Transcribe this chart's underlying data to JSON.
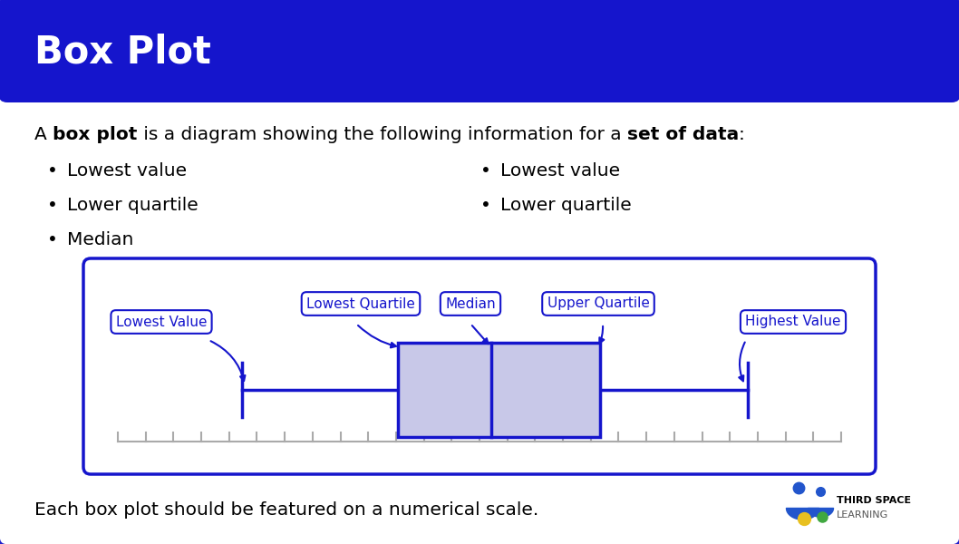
{
  "title": "Box Plot",
  "title_bg_color": "#1515CC",
  "title_text_color": "#FFFFFF",
  "bg_color": "#FFFFFF",
  "border_color": "#2020CC",
  "intro_segments": [
    {
      "text": "A ",
      "bold": false
    },
    {
      "text": "box plot",
      "bold": true
    },
    {
      "text": " is a diagram showing the following information for a ",
      "bold": false
    },
    {
      "text": "set of data",
      "bold": true
    },
    {
      "text": ":",
      "bold": false
    }
  ],
  "bullet_col1": [
    "Lowest value",
    "Lower quartile",
    "Median"
  ],
  "bullet_col2": [
    "Lowest value",
    "Lower quartile"
  ],
  "footer_text": "Each box plot should be featured on a numerical scale.",
  "box_bg_color": "#C8C8E8",
  "box_border_color": "#1515CC",
  "whisker_color": "#1515CC",
  "label_text_color": "#1515CC",
  "label_border_color": "#1515CC",
  "bp_positions": {
    "min": 0.195,
    "q1": 0.395,
    "median": 0.515,
    "q3": 0.655,
    "max": 0.845
  },
  "scale_color": "#AAAAAA",
  "arrow_color": "#1515CC",
  "logo_colors": {
    "blue": "#2255CC",
    "yellow": "#E8C020",
    "green": "#40A840"
  }
}
